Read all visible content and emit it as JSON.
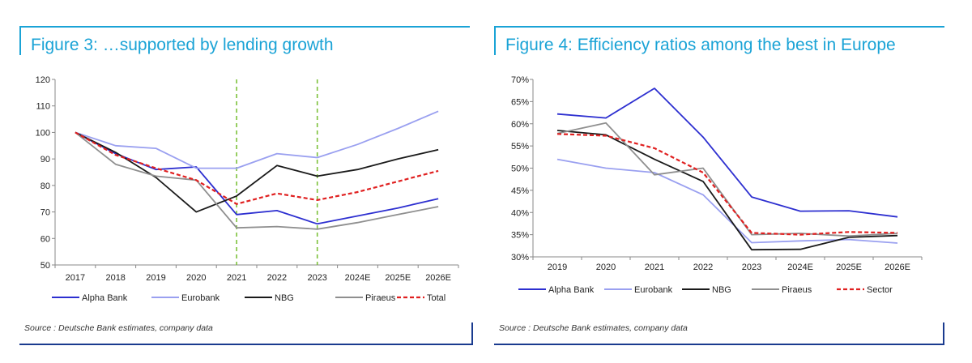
{
  "colors": {
    "accent": "#1aa3d6",
    "frame_bottom": "#1a3b8f",
    "alpha_bank": "#2d2fd0",
    "eurobank": "#9aa0f0",
    "nbg": "#1a1a1a",
    "piraeus": "#8f8f8f",
    "total": "#e02020",
    "marker_lines": "#7cc13a"
  },
  "figure3": {
    "title": "Figure 3: …supported by lending growth",
    "source": "Source : Deutsche Bank estimates, company data"
  },
  "figure4": {
    "title": "Figure 4: Efficiency ratios among the best in Europe",
    "source": "Source : Deutsche Bank estimates, company data"
  },
  "chart_data": [
    {
      "type": "line",
      "title": "Figure 3: …supported by lending growth",
      "categories": [
        "2017",
        "2018",
        "2019",
        "2020",
        "2021",
        "2022",
        "2023",
        "2024E",
        "2025E",
        "2026E"
      ],
      "ylim": [
        50,
        120
      ],
      "yticks": [
        "50",
        "60",
        "70",
        "80",
        "90",
        "100",
        "110",
        "120"
      ],
      "grid": false,
      "legend_position": "bottom",
      "vertical_markers": [
        "2021",
        "2023"
      ],
      "series": [
        {
          "name": "Alpha Bank",
          "color": "#2d2fd0",
          "dash": false,
          "values": [
            100,
            92,
            86,
            87,
            69,
            70.5,
            65.5,
            68.5,
            71.5,
            75
          ]
        },
        {
          "name": "Eurobank",
          "color": "#9aa0f0",
          "dash": false,
          "values": [
            100,
            95,
            94,
            86.5,
            86.5,
            92,
            90.5,
            95.5,
            101.5,
            108
          ]
        },
        {
          "name": "NBG",
          "color": "#1a1a1a",
          "dash": false,
          "values": [
            100,
            92.5,
            83,
            70,
            76,
            87.5,
            83.5,
            86,
            90,
            93.5
          ]
        },
        {
          "name": "Piraeus",
          "color": "#8f8f8f",
          "dash": false,
          "values": [
            100,
            88,
            83.5,
            82,
            64,
            64.5,
            63.5,
            66,
            69,
            72
          ]
        },
        {
          "name": "Total",
          "color": "#e02020",
          "dash": true,
          "values": [
            100,
            91.5,
            86.5,
            82,
            73,
            77,
            74.5,
            77.5,
            81.5,
            85.5
          ]
        }
      ]
    },
    {
      "type": "line",
      "title": "Figure 4: Efficiency ratios among the best in Europe",
      "categories": [
        "2019",
        "2020",
        "2021",
        "2022",
        "2023",
        "2024E",
        "2025E",
        "2026E"
      ],
      "ylim": [
        30,
        70
      ],
      "yticks": [
        "30%",
        "35%",
        "40%",
        "45%",
        "50%",
        "55%",
        "60%",
        "65%",
        "70%"
      ],
      "grid": false,
      "legend_position": "bottom",
      "series": [
        {
          "name": "Alpha Bank",
          "color": "#2d2fd0",
          "dash": false,
          "values": [
            62.2,
            61.3,
            68,
            57,
            43.5,
            40.3,
            40.4,
            39
          ]
        },
        {
          "name": "Eurobank",
          "color": "#9aa0f0",
          "dash": false,
          "values": [
            52,
            50,
            49,
            44,
            33.2,
            33.6,
            33.9,
            33.1
          ]
        },
        {
          "name": "NBG",
          "color": "#1a1a1a",
          "dash": false,
          "values": [
            58.5,
            57.5,
            52,
            47,
            31.6,
            31.7,
            34.4,
            34.8
          ]
        },
        {
          "name": "Piraeus",
          "color": "#8f8f8f",
          "dash": false,
          "values": [
            57.8,
            60.2,
            48.5,
            50,
            35,
            35.3,
            34.7,
            35.3
          ]
        },
        {
          "name": "Sector",
          "color": "#e02020",
          "dash": true,
          "values": [
            57.7,
            57.3,
            54.5,
            49,
            35.4,
            35,
            35.6,
            35.4
          ]
        }
      ]
    }
  ]
}
